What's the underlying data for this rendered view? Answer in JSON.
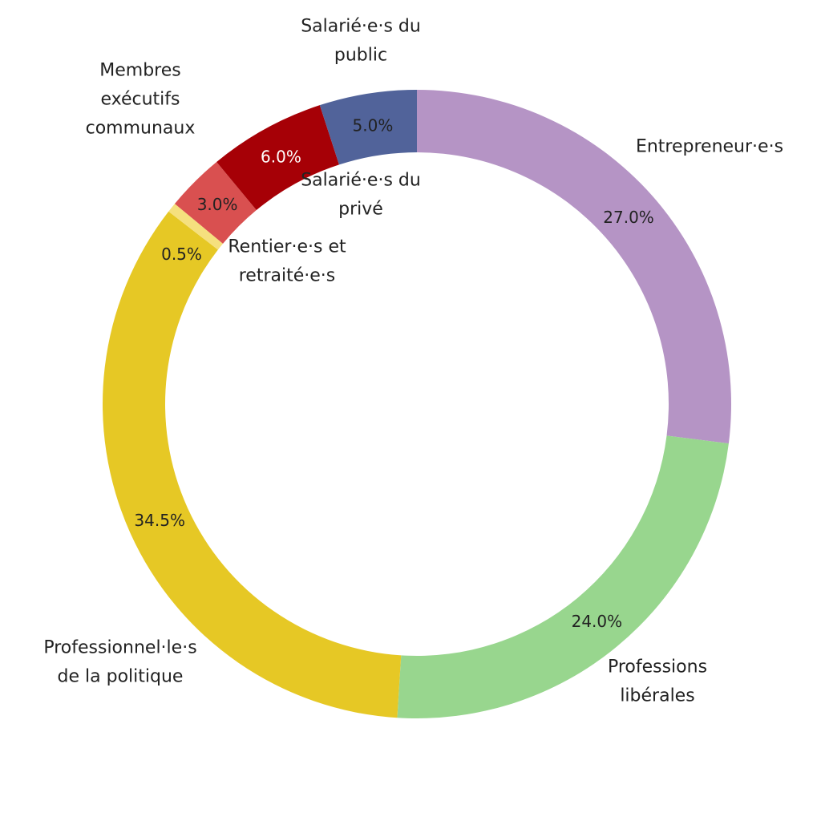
{
  "chart_data": {
    "type": "pie",
    "donut": true,
    "slices": [
      {
        "label_lines": [
          "Entrepreneur·e·s"
        ],
        "value": 27.0,
        "pct_label": "27.0%",
        "color": "#b594c5",
        "pct_color": "#222222"
      },
      {
        "label_lines": [
          "Professions",
          "libérales"
        ],
        "value": 24.0,
        "pct_label": "24.0%",
        "color": "#98d68e",
        "pct_color": "#222222"
      },
      {
        "label_lines": [
          "Professionnel·le·s",
          "de la politique"
        ],
        "value": 34.5,
        "pct_label": "34.5%",
        "color": "#e6c825",
        "pct_color": "#222222"
      },
      {
        "label_lines": [
          "Rentier·e·s et",
          "retraité·e·s"
        ],
        "value": 0.5,
        "pct_label": "0.5%",
        "color": "#f5e07e",
        "pct_color": "#222222"
      },
      {
        "label_lines": [
          "Membres",
          "exécutifs",
          "communaux"
        ],
        "value": 3.0,
        "pct_label": "3.0%",
        "color": "#d95050",
        "pct_color": "#222222"
      },
      {
        "label_lines": [
          "Salarié·e·s du",
          "privé"
        ],
        "value": 6.0,
        "pct_label": "6.0%",
        "color": "#a60006",
        "pct_color": "#ffffff"
      },
      {
        "label_lines": [
          "Salarié·e·s du",
          "public"
        ],
        "value": 5.0,
        "pct_label": "5.0%",
        "color": "#51639a",
        "pct_color": "#222222"
      }
    ]
  }
}
